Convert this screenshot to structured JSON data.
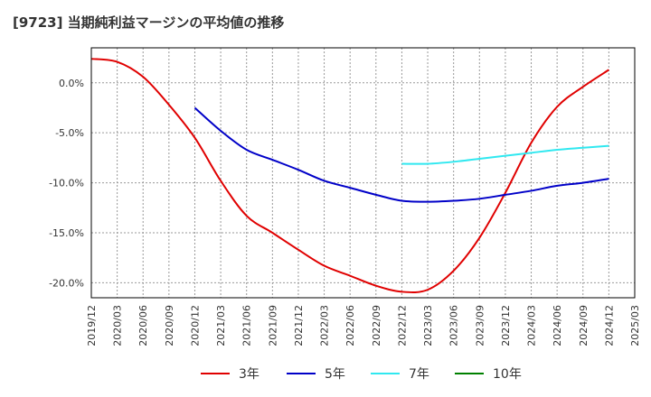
{
  "title": "[9723]  当期純利益マージンの平均値の推移",
  "chart_data": {
    "type": "line",
    "title": "[9723]  当期純利益マージンの平均値の推移",
    "xlabel": "",
    "ylabel": "",
    "x_ticks": [
      "2019/12",
      "2020/03",
      "2020/06",
      "2020/09",
      "2020/12",
      "2021/03",
      "2021/06",
      "2021/09",
      "2021/12",
      "2022/03",
      "2022/06",
      "2022/09",
      "2022/12",
      "2023/03",
      "2023/06",
      "2023/09",
      "2023/12",
      "2024/03",
      "2024/06",
      "2024/09",
      "2024/12",
      "2025/03"
    ],
    "y_ticks": [
      0.0,
      -5.0,
      -10.0,
      -15.0,
      -20.0
    ],
    "y_tick_labels": [
      "0.0%",
      "-5.0%",
      "-10.0%",
      "-15.0%",
      "-20.0%"
    ],
    "ylim": [
      -21.5,
      3.5
    ],
    "grid": true,
    "legend_position": "bottom",
    "series": [
      {
        "name": "3年",
        "color": "#e00000",
        "points": [
          [
            "2019/12",
            2.4
          ],
          [
            "2020/03",
            2.1
          ],
          [
            "2020/06",
            0.6
          ],
          [
            "2020/09",
            -2.2
          ],
          [
            "2020/12",
            -5.5
          ],
          [
            "2021/03",
            -9.8
          ],
          [
            "2021/06",
            -13.3
          ],
          [
            "2021/09",
            -15.0
          ],
          [
            "2021/12",
            -16.7
          ],
          [
            "2022/03",
            -18.3
          ],
          [
            "2022/06",
            -19.3
          ],
          [
            "2022/09",
            -20.3
          ],
          [
            "2022/12",
            -20.9
          ],
          [
            "2023/03",
            -20.7
          ],
          [
            "2023/06",
            -18.8
          ],
          [
            "2023/09",
            -15.5
          ],
          [
            "2023/12",
            -11.0
          ],
          [
            "2024/03",
            -6.0
          ],
          [
            "2024/06",
            -2.4
          ],
          [
            "2024/09",
            -0.4
          ],
          [
            "2024/12",
            1.3
          ]
        ]
      },
      {
        "name": "5年",
        "color": "#0000c8",
        "points": [
          [
            "2020/12",
            -2.5
          ],
          [
            "2021/03",
            -4.8
          ],
          [
            "2021/06",
            -6.7
          ],
          [
            "2021/09",
            -7.7
          ],
          [
            "2021/12",
            -8.7
          ],
          [
            "2022/03",
            -9.8
          ],
          [
            "2022/06",
            -10.5
          ],
          [
            "2022/09",
            -11.2
          ],
          [
            "2022/12",
            -11.8
          ],
          [
            "2023/03",
            -11.9
          ],
          [
            "2023/06",
            -11.8
          ],
          [
            "2023/09",
            -11.6
          ],
          [
            "2023/12",
            -11.2
          ],
          [
            "2024/03",
            -10.8
          ],
          [
            "2024/06",
            -10.3
          ],
          [
            "2024/09",
            -10.0
          ],
          [
            "2024/12",
            -9.6
          ]
        ]
      },
      {
        "name": "7年",
        "color": "#30e8f0",
        "points": [
          [
            "2022/12",
            -8.1
          ],
          [
            "2023/03",
            -8.1
          ],
          [
            "2023/06",
            -7.9
          ],
          [
            "2023/09",
            -7.6
          ],
          [
            "2023/12",
            -7.3
          ],
          [
            "2024/03",
            -7.0
          ],
          [
            "2024/06",
            -6.7
          ],
          [
            "2024/09",
            -6.5
          ],
          [
            "2024/12",
            -6.3
          ]
        ]
      },
      {
        "name": "10年",
        "color": "#008000",
        "points": []
      }
    ]
  }
}
